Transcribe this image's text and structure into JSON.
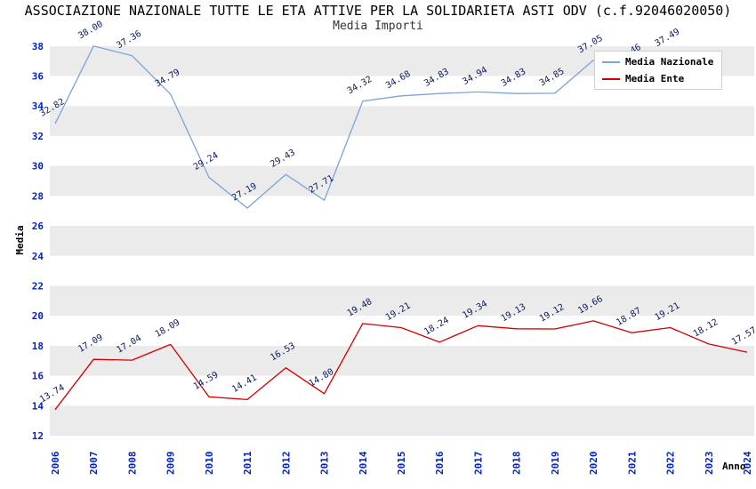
{
  "title": "ASSOCIAZIONE NAZIONALE TUTTE LE ETA ATTIVE PER LA SOLIDARIETA ASTI ODV (c.f.92046020050)",
  "subtitle": "Media Importi",
  "legend": {
    "items": [
      {
        "label": "Media Nazionale",
        "color": "#7aa5d8"
      },
      {
        "label": "Media Ente",
        "color": "#d40000"
      }
    ]
  },
  "chart_data": {
    "type": "line",
    "title": "Media Importi",
    "xlabel": "Anno",
    "ylabel": "Media",
    "x": [
      "2006",
      "2007",
      "2008",
      "2009",
      "2010",
      "2011",
      "2012",
      "2013",
      "2014",
      "2015",
      "2016",
      "2017",
      "2018",
      "2019",
      "2020",
      "2021",
      "2022",
      "2023",
      "2024"
    ],
    "ylim": [
      12,
      38.7
    ],
    "yticks": [
      12,
      14,
      16,
      18,
      20,
      22,
      24,
      26,
      28,
      30,
      32,
      34,
      36,
      38
    ],
    "band_color": "#ebebeb",
    "grid": "horizontal-bands",
    "legend_position": "top-right",
    "series": [
      {
        "name": "Media Nazionale",
        "color": "#7aa5d8",
        "values": [
          32.82,
          38.0,
          37.36,
          34.79,
          29.24,
          27.19,
          29.43,
          27.71,
          34.32,
          34.68,
          34.83,
          34.94,
          34.83,
          34.85,
          37.05,
          36.46,
          37.49,
          null,
          null
        ]
      },
      {
        "name": "Media Ente",
        "color": "#d40000",
        "values": [
          13.74,
          17.09,
          17.04,
          18.09,
          14.59,
          14.41,
          16.53,
          14.8,
          19.48,
          19.21,
          18.24,
          19.34,
          19.13,
          19.12,
          19.66,
          18.87,
          19.21,
          18.12,
          17.57
        ]
      }
    ]
  }
}
